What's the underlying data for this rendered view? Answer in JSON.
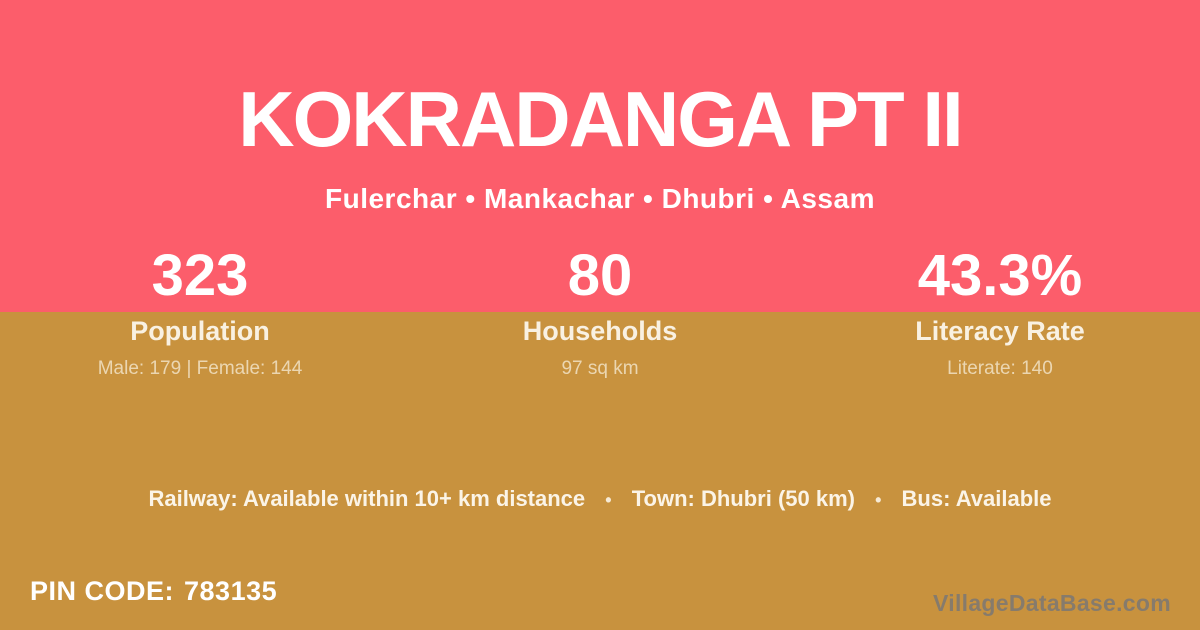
{
  "colors": {
    "header_pink": "#fc5d6b",
    "body_gold": "#c8923e",
    "primary_text": "#ffffff",
    "secondary_text": "#f3e6cb",
    "watermark_gray": "#6e737e"
  },
  "header": {
    "title": "KOKRADANGA PT II",
    "subtitle": "Fulerchar • Mankachar • Dhubri • Assam"
  },
  "stats": [
    {
      "value": "323",
      "label": "Population",
      "detail": "Male: 179 | Female: 144"
    },
    {
      "value": "80",
      "label": "Households",
      "detail": "97 sq km"
    },
    {
      "value": "43.3%",
      "label": "Literacy Rate",
      "detail": "Literate: 140"
    }
  ],
  "amenities": {
    "separator": "•",
    "segments": [
      "Railway: Available within 10+ km distance",
      "Town: Dhubri (50 km)",
      "Bus: Available"
    ]
  },
  "footer": {
    "pin_label": "PIN CODE:",
    "pin_value": "783135",
    "watermark": "VillageDataBase.com"
  }
}
